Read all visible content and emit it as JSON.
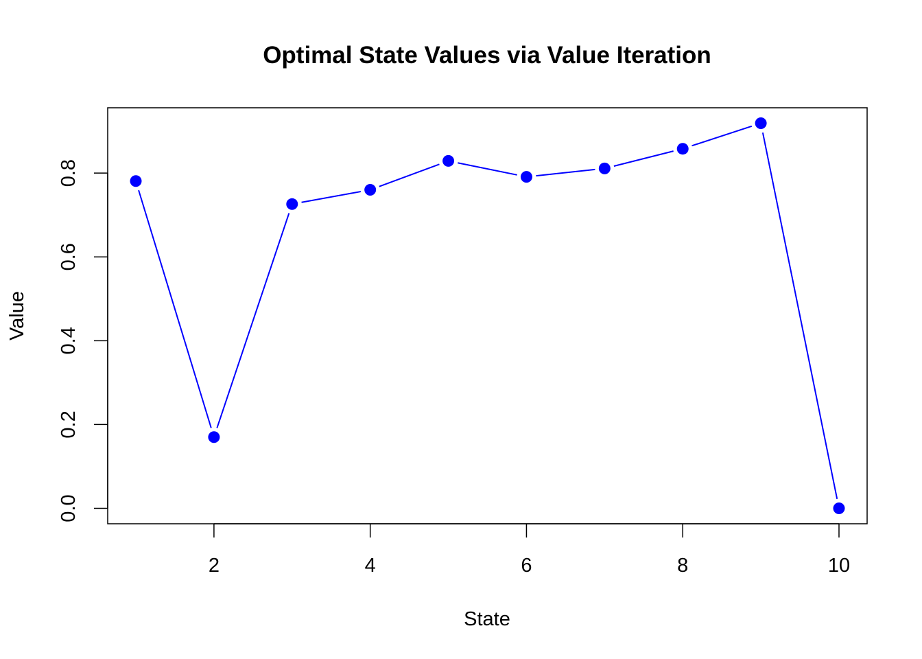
{
  "chart_data": {
    "type": "line",
    "title": "Optimal State Values via Value Iteration",
    "xlabel": "State",
    "ylabel": "Value",
    "x": [
      1,
      2,
      3,
      4,
      5,
      6,
      7,
      8,
      9,
      10
    ],
    "series": [
      {
        "values": [
          0.781,
          0.17,
          0.726,
          0.76,
          0.829,
          0.791,
          0.811,
          0.858,
          0.919,
          0.0
        ],
        "color": "#0000ff"
      }
    ],
    "x_ticks": [
      "2",
      "4",
      "6",
      "8",
      "10"
    ],
    "y_ticks": [
      "0.0",
      "0.2",
      "0.4",
      "0.6",
      "0.8"
    ],
    "xlim": [
      0.64,
      10.36
    ],
    "ylim": [
      -0.0368,
      0.9558
    ],
    "grid": false,
    "legend": "none",
    "markers": "filled-circle"
  }
}
